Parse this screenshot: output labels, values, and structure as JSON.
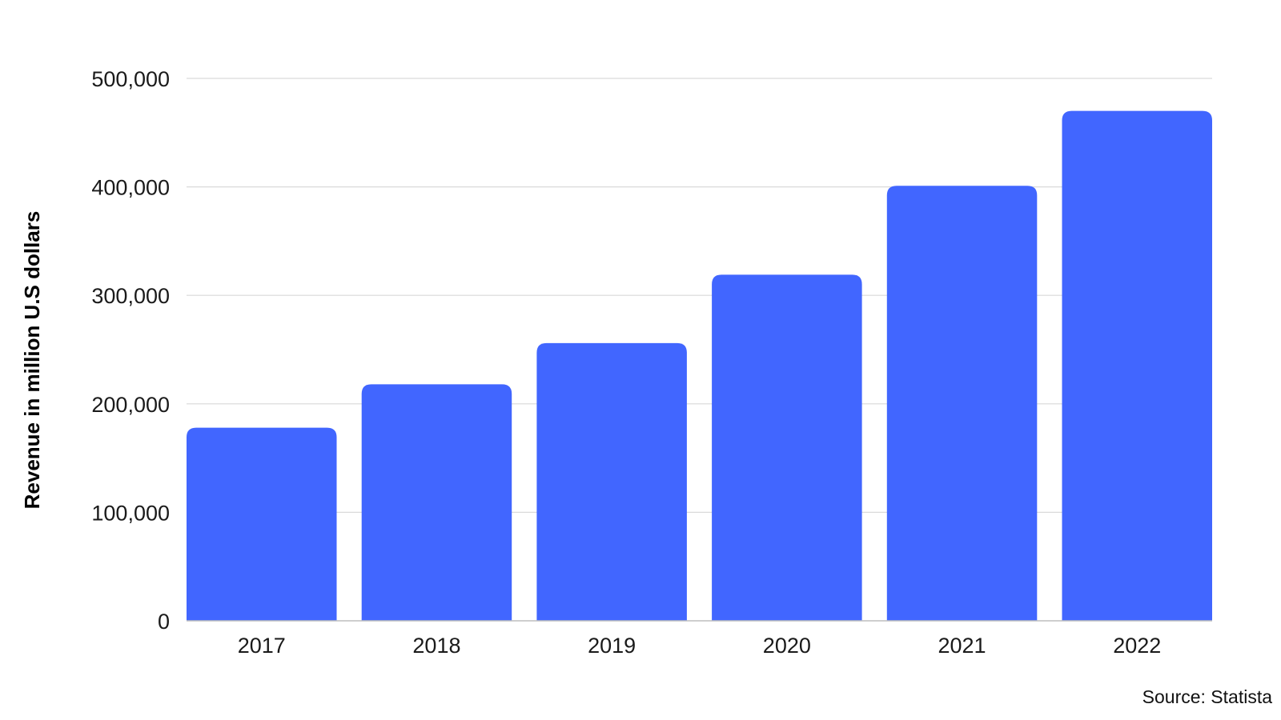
{
  "chart_data": {
    "type": "bar",
    "categories": [
      "2017",
      "2018",
      "2019",
      "2020",
      "2021",
      "2022"
    ],
    "values": [
      178000,
      218000,
      256000,
      319000,
      401000,
      470000
    ],
    "title": "",
    "xlabel": "",
    "ylabel": "Revenue in million U.S dollars",
    "ylim": [
      0,
      500000
    ],
    "yticks": [
      0,
      100000,
      200000,
      300000,
      400000,
      500000
    ],
    "ytick_labels": [
      "0",
      "100,000",
      "200,000",
      "300,000",
      "400,000",
      "500,000"
    ],
    "grid": true,
    "legend": "none",
    "bar_color": "#4166ff",
    "source": "Source: Statista"
  }
}
